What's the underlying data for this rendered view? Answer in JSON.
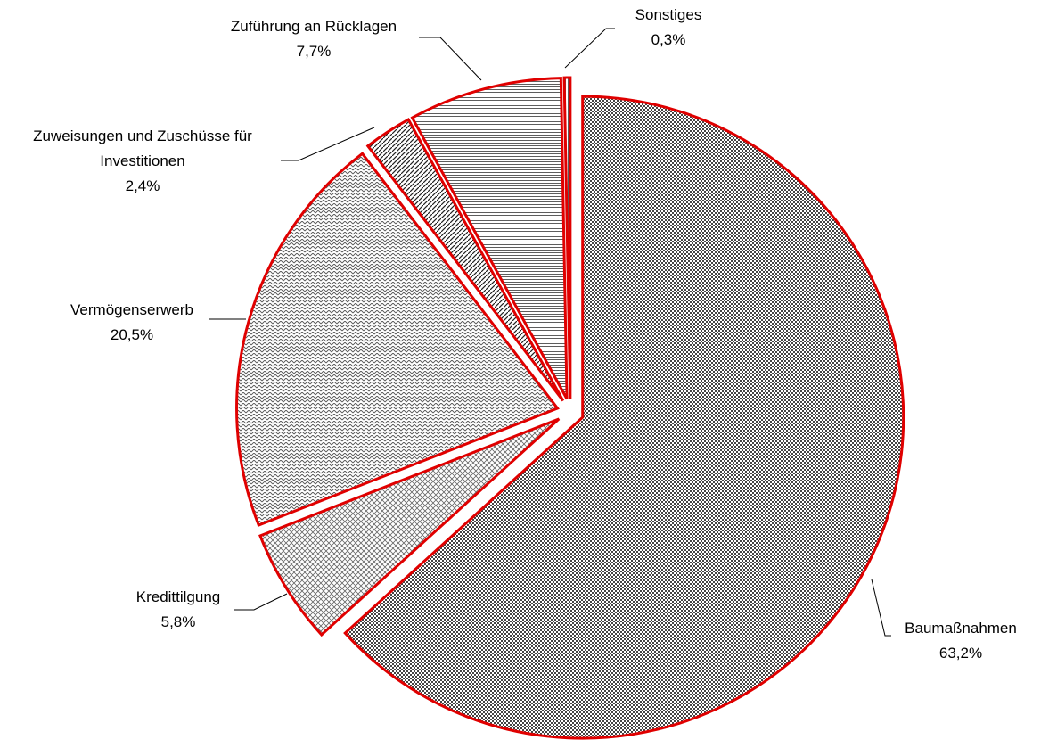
{
  "chart_data": {
    "type": "pie",
    "categories": [
      "Baumaßnahmen",
      "Kredittilgung",
      "Vermögenserwerb",
      "Zuweisungen und Zuschüsse für Investitionen",
      "Zuführung an Rücklagen",
      "Sonstiges"
    ],
    "values": [
      63.2,
      5.8,
      20.5,
      2.4,
      7.7,
      0.3
    ],
    "value_labels": [
      "63,2%",
      "5,8%",
      "20,5%",
      "2,4%",
      "7,7%",
      "0,3%"
    ],
    "color": "#e00000"
  }
}
